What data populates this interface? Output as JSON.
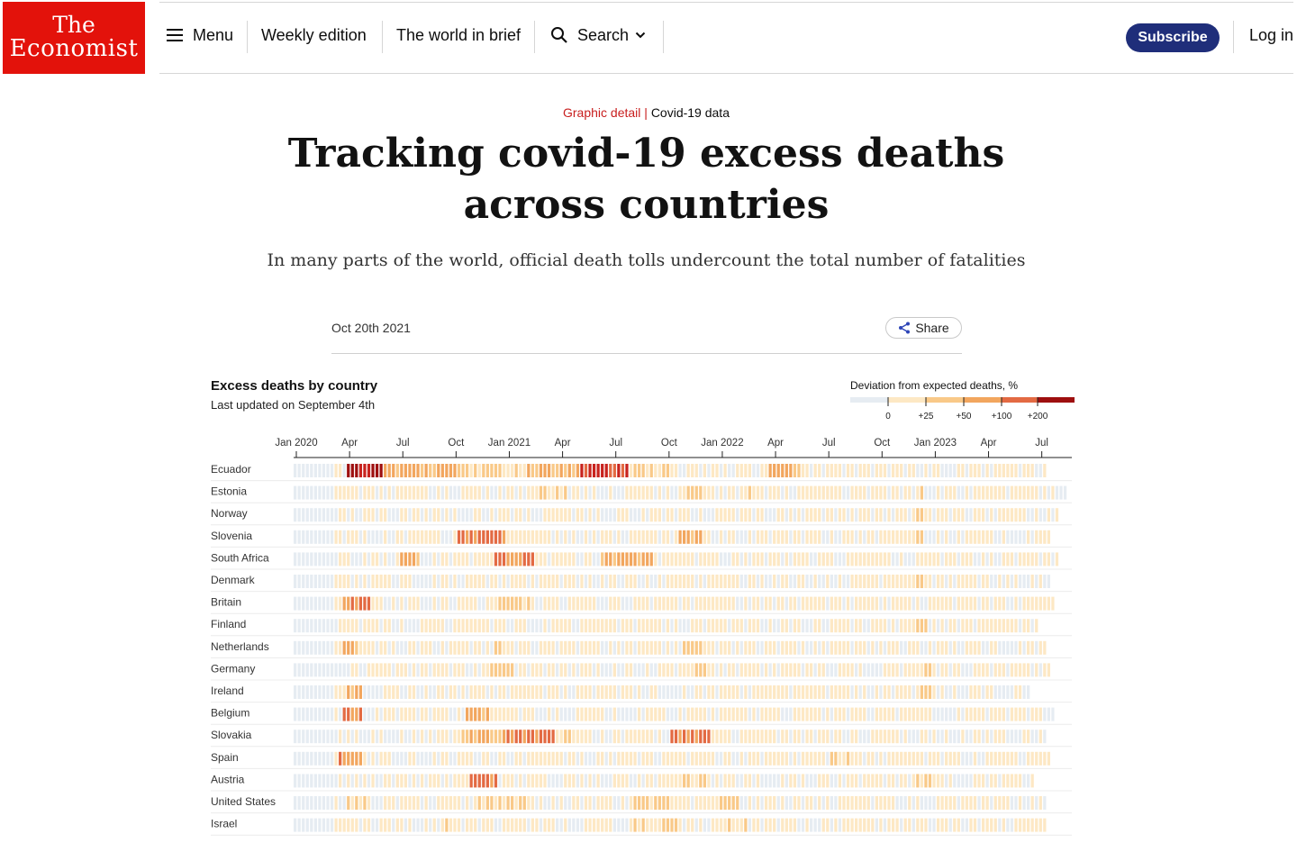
{
  "header": {
    "logo_line1": "The",
    "logo_line2": "Economist",
    "menu_label": "Menu",
    "nav_items": [
      "Weekly edition",
      "The world in brief"
    ],
    "search_label": "Search",
    "subscribe_label": "Subscribe",
    "login_label": "Log in"
  },
  "article": {
    "section": "Graphic detail",
    "separator": "|",
    "topic": "Covid-19 data",
    "headline": "Tracking covid-19 excess deaths across countries",
    "standfirst": "In many parts of the world, official death tolls undercount the total number of fatalities",
    "date": "Oct 20th 2021",
    "share_label": "Share"
  },
  "colors": {
    "brand_red": "#e3120b",
    "subscribe_blue": "#1f2e7a",
    "scale": [
      "#e6ecf2",
      "#fde8c4",
      "#f9c988",
      "#f2a65e",
      "#e36a43",
      "#c8231e",
      "#9e0f0f"
    ]
  },
  "chart_data": {
    "type": "heatmap",
    "title": "Excess deaths by country",
    "subtitle": "Last updated on September 4th",
    "legend": {
      "title": "Deviation from expected deaths, %",
      "tick_labels": [
        "0",
        "+25",
        "+50",
        "+100",
        "+200"
      ]
    },
    "x_tick_labels": [
      "Jan 2020",
      "Apr",
      "Jul",
      "Oct",
      "Jan 2021",
      "Apr",
      "Jul",
      "Oct",
      "Jan 2022",
      "Apr",
      "Jul",
      "Oct",
      "Jan 2023",
      "Apr",
      "Jul"
    ],
    "x_range": [
      "2020-01",
      "2023-08"
    ],
    "rows": [
      {
        "country": "Ecuador",
        "last_week": 184,
        "peaks": [
          [
            13,
            22,
            6
          ],
          [
            22,
            40,
            3
          ],
          [
            40,
            56,
            2
          ],
          [
            57,
            70,
            3
          ],
          [
            70,
            82,
            5
          ],
          [
            82,
            92,
            2
          ],
          [
            116,
            124,
            3
          ]
        ]
      },
      {
        "country": "Estonia",
        "last_week": 189,
        "peaks": [
          [
            60,
            67,
            2
          ],
          [
            68,
            72,
            1
          ],
          [
            95,
            100,
            2
          ],
          [
            109,
            112,
            2
          ],
          [
            152,
            154,
            2
          ]
        ]
      },
      {
        "country": "Norway",
        "last_week": 187,
        "peaks": [
          [
            94,
            96,
            1
          ],
          [
            152,
            155,
            2
          ]
        ]
      },
      {
        "country": "Slovenia",
        "last_week": 185,
        "peaks": [
          [
            40,
            52,
            4
          ],
          [
            94,
            100,
            3
          ],
          [
            152,
            154,
            2
          ]
        ]
      },
      {
        "country": "South Africa",
        "last_week": 187,
        "peaks": [
          [
            26,
            31,
            3
          ],
          [
            49,
            59,
            4
          ],
          [
            75,
            88,
            3
          ],
          [
            101,
            104,
            2
          ]
        ]
      },
      {
        "country": "Denmark",
        "last_week": 185,
        "peaks": [
          [
            152,
            154,
            2
          ]
        ]
      },
      {
        "country": "Britain",
        "last_week": 186,
        "peaks": [
          [
            12,
            19,
            4
          ],
          [
            50,
            58,
            2
          ],
          [
            121,
            123,
            1
          ],
          [
            152,
            154,
            1
          ]
        ]
      },
      {
        "country": "Finland",
        "last_week": 182,
        "peaks": [
          [
            134,
            136,
            1
          ],
          [
            152,
            155,
            2
          ]
        ]
      },
      {
        "country": "Netherlands",
        "last_week": 184,
        "peaks": [
          [
            12,
            16,
            3
          ],
          [
            49,
            52,
            2
          ],
          [
            95,
            101,
            2
          ],
          [
            152,
            154,
            1
          ]
        ]
      },
      {
        "country": "Germany",
        "last_week": 185,
        "peaks": [
          [
            48,
            54,
            2
          ],
          [
            98,
            101,
            2
          ],
          [
            152,
            157,
            2
          ]
        ]
      },
      {
        "country": "Ireland",
        "last_week": 180,
        "peaks": [
          [
            13,
            17,
            3
          ],
          [
            54,
            57,
            2
          ],
          [
            152,
            156,
            2
          ]
        ]
      },
      {
        "country": "Belgium",
        "last_week": 186,
        "peaks": [
          [
            12,
            17,
            4
          ],
          [
            42,
            48,
            3
          ],
          [
            152,
            154,
            1
          ]
        ]
      },
      {
        "country": "Slovakia",
        "last_week": 184,
        "peaks": [
          [
            41,
            52,
            3
          ],
          [
            52,
            64,
            4
          ],
          [
            64,
            68,
            2
          ],
          [
            92,
            102,
            4
          ]
        ]
      },
      {
        "country": "Spain",
        "last_week": 185,
        "peaks": [
          [
            11,
            17,
            4
          ],
          [
            127,
            129,
            1
          ],
          [
            131,
            136,
            2
          ]
        ]
      },
      {
        "country": "Austria",
        "last_week": 181,
        "peaks": [
          [
            43,
            50,
            4
          ],
          [
            95,
            101,
            2
          ],
          [
            152,
            156,
            2
          ]
        ]
      },
      {
        "country": "United States",
        "last_week": 184,
        "peaks": [
          [
            13,
            18,
            2
          ],
          [
            45,
            57,
            2
          ],
          [
            83,
            92,
            2
          ],
          [
            103,
            109,
            2
          ]
        ]
      },
      {
        "country": "Israel",
        "last_week": 184,
        "peaks": [
          [
            36,
            41,
            2
          ],
          [
            83,
            86,
            2
          ],
          [
            90,
            94,
            2
          ],
          [
            106,
            111,
            2
          ]
        ]
      }
    ]
  }
}
